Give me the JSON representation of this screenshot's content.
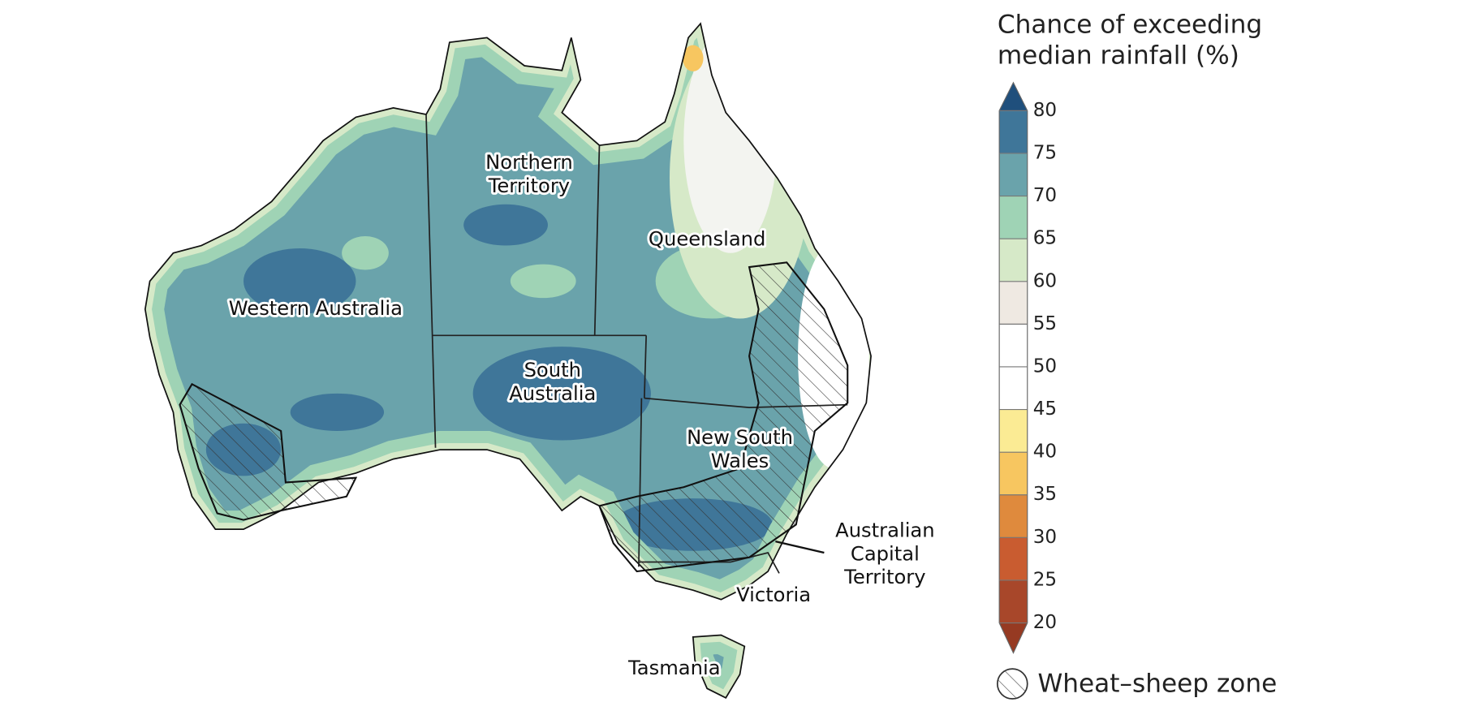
{
  "legend": {
    "title_lines": [
      "Chance of exceeding",
      "median rainfall (%)"
    ],
    "ticks": [
      20,
      25,
      30,
      35,
      40,
      45,
      50,
      55,
      60,
      65,
      70,
      75,
      80
    ],
    "colors": [
      "#a8472a",
      "#c95c30",
      "#df8a3d",
      "#f7c660",
      "#fbeb94",
      "#ffffff",
      "#ffffff",
      "#efe9e2",
      "#d6e9c8",
      "#9fd3b5",
      "#6aa3ab",
      "#3f7699"
    ],
    "low_color": "#963a22",
    "high_color": "#1f4f7c",
    "zone_label": "Wheat–sheep zone"
  },
  "regions": [
    {
      "lines": [
        "Western Australia"
      ],
      "at": "wa"
    },
    {
      "lines": [
        "Northern",
        "Territory"
      ],
      "at": "nt"
    },
    {
      "lines": [
        "Queensland"
      ],
      "at": "qld"
    },
    {
      "lines": [
        "South",
        "Australia"
      ],
      "at": "sa"
    },
    {
      "lines": [
        "New South",
        "Wales"
      ],
      "at": "nsw"
    },
    {
      "lines": [
        "Australian",
        "Capital",
        "Territory"
      ],
      "at": "act"
    },
    {
      "lines": [
        "Victoria"
      ],
      "at": "vic"
    },
    {
      "lines": [
        "Tasmania"
      ],
      "at": "tas"
    }
  ]
}
